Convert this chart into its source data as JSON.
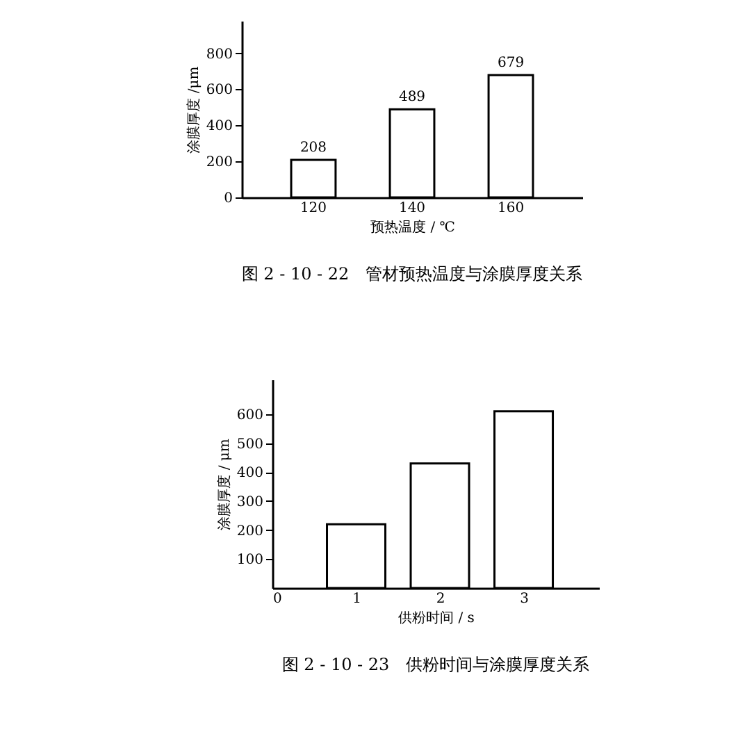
{
  "chart_data": [
    {
      "type": "bar",
      "title": "图 2 - 10 - 22　管材预热温度与涂膜厚度关系",
      "xlabel": "预热温度 / ℃",
      "ylabel": "涂膜厚度 /μm",
      "categories": [
        "120",
        "140",
        "160"
      ],
      "values": [
        208,
        489,
        679
      ],
      "color": "#ffffff",
      "data_labels": true,
      "ylim": [
        0,
        980
      ],
      "yticks": [
        0,
        200,
        400,
        600,
        800
      ],
      "grid": false
    },
    {
      "type": "bar",
      "title": "图 2 - 10 - 23　供粉时间与涂膜厚度关系",
      "xlabel": "供粉时间 / s",
      "ylabel": "涂膜厚度 / μm",
      "x": [
        1,
        2,
        3
      ],
      "values": [
        220,
        430,
        610
      ],
      "color": "#ffffff",
      "xlim": [
        0,
        3.9
      ],
      "xticks": [
        0,
        1,
        2,
        3
      ],
      "ylim": [
        0,
        720
      ],
      "yticks": [
        100,
        200,
        300,
        400,
        500,
        600
      ],
      "grid": false
    }
  ]
}
